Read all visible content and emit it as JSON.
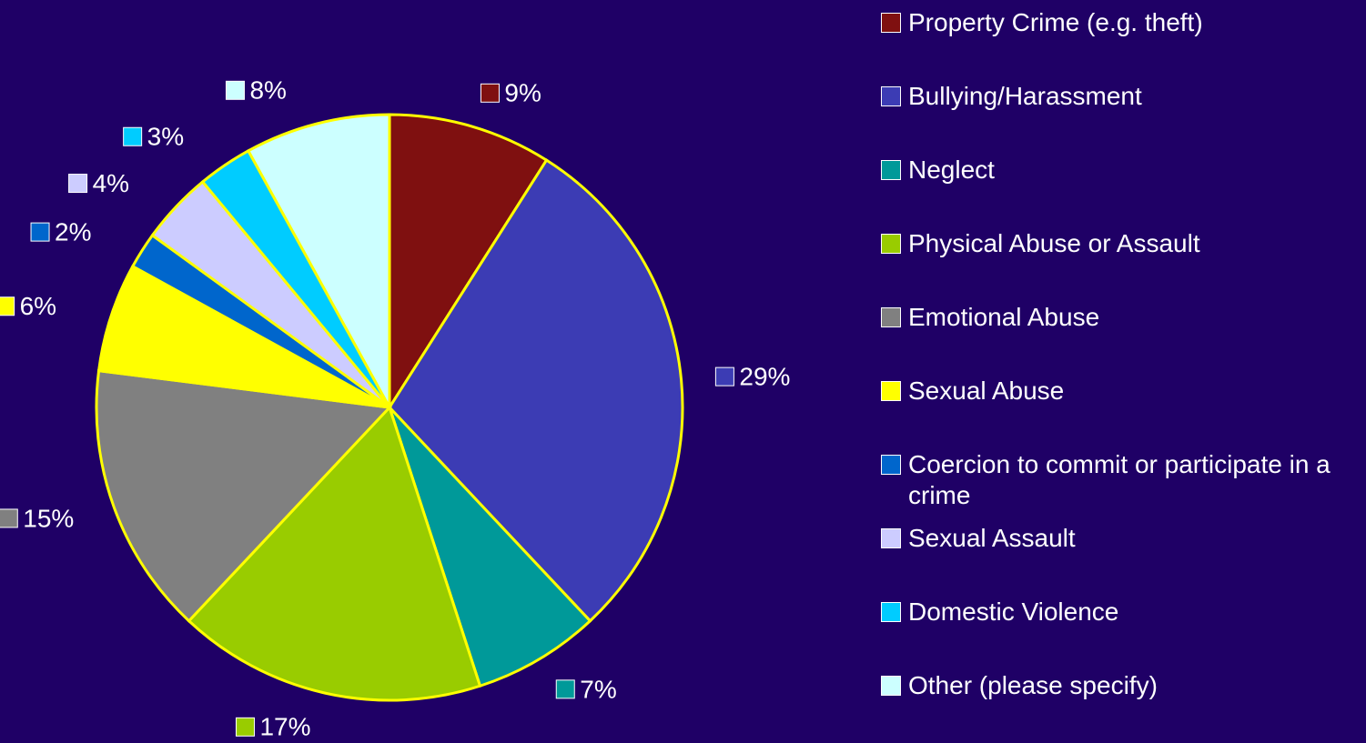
{
  "chart_data": {
    "type": "pie",
    "categories": [
      "Property Crime (e.g. theft)",
      "Bullying/Harassment",
      "Neglect",
      "Physical Abuse or Assault",
      "Emotional Abuse",
      "Sexual Abuse",
      "Coercion to commit or participate in a crime",
      "Sexual Assault",
      "Domestic Violence",
      "Other (please specify)"
    ],
    "values": [
      9,
      29,
      7,
      17,
      15,
      6,
      2,
      4,
      3,
      8
    ],
    "value_labels": [
      "9%",
      "29%",
      "7%",
      "17%",
      "15%",
      "6%",
      "2%",
      "4%",
      "3%",
      "8%"
    ],
    "colors": [
      "#7f1010",
      "#3c3cb4",
      "#009999",
      "#99cc00",
      "#808080",
      "#ffff00",
      "#0066cc",
      "#ccccff",
      "#00ccff",
      "#ccffff"
    ],
    "legend": "right"
  }
}
